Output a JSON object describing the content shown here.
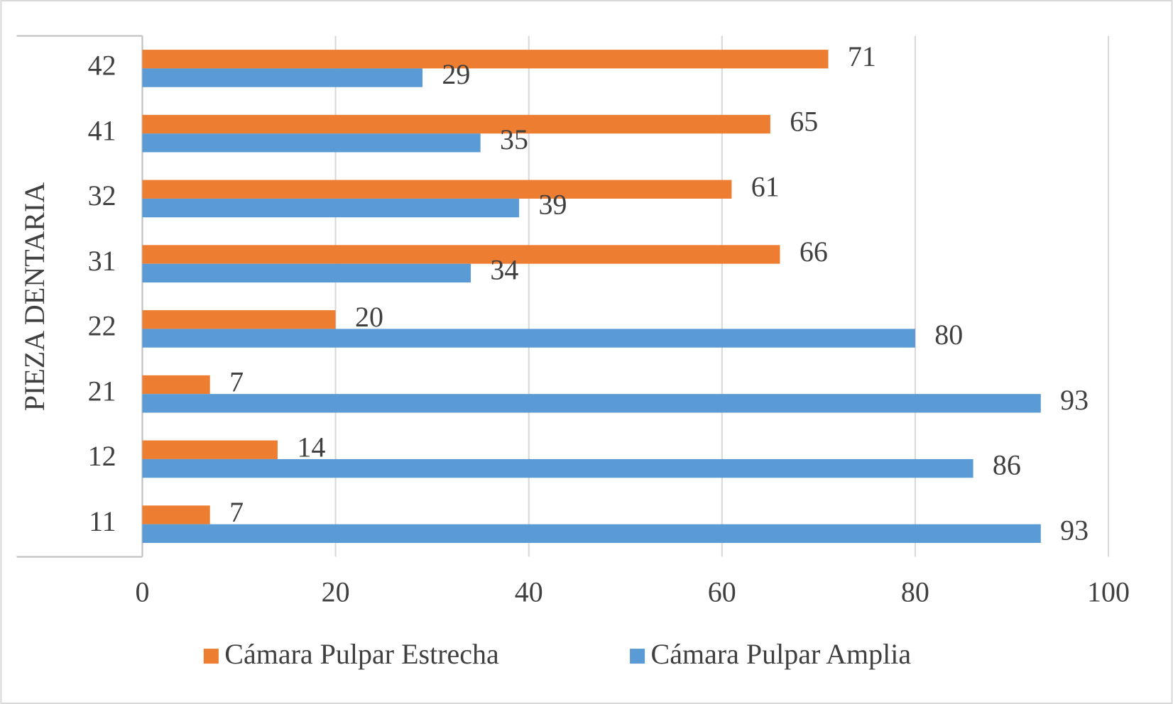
{
  "chart_data": {
    "type": "hbar",
    "y_axis_label": "PIEZA DENTARIA",
    "categories": [
      "11",
      "12",
      "21",
      "22",
      "31",
      "32",
      "41",
      "42"
    ],
    "series": [
      {
        "name": "Cámara Pulpar Estrecha",
        "color": "#ed7d31",
        "values": [
          7,
          14,
          7,
          20,
          66,
          61,
          65,
          71
        ]
      },
      {
        "name": "Cámara Pulpar Amplia",
        "color": "#5b9bd5",
        "values": [
          93,
          86,
          93,
          80,
          34,
          39,
          35,
          29
        ]
      }
    ],
    "xlim": [
      0,
      100
    ],
    "xticks": [
      0,
      20,
      40,
      60,
      80,
      100
    ],
    "grid": true,
    "legend": "bottom"
  }
}
